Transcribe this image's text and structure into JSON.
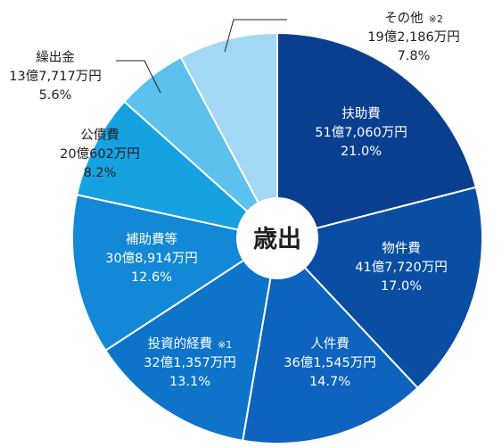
{
  "chart_data": {
    "type": "pie",
    "variant": "donut",
    "center_label": "歳出",
    "start": "12 o'clock",
    "direction": "clockwise",
    "slices": [
      {
        "name": "扶助費",
        "amount_label": "51億7,060万円",
        "percent": 21.0,
        "percent_label": "21.0%",
        "color": "#0a3f8f",
        "note": ""
      },
      {
        "name": "物件費",
        "amount_label": "41億7,720万円",
        "percent": 17.0,
        "percent_label": "17.0%",
        "color": "#0a4ea3",
        "note": ""
      },
      {
        "name": "人件費",
        "amount_label": "36億1,545万円",
        "percent": 14.7,
        "percent_label": "14.7%",
        "color": "#0d63bd",
        "note": ""
      },
      {
        "name": "投資的経費",
        "amount_label": "32億1,357万円",
        "percent": 13.1,
        "percent_label": "13.1%",
        "color": "#0e74c9",
        "note": "※1"
      },
      {
        "name": "補助費等",
        "amount_label": "30億8,914万円",
        "percent": 12.6,
        "percent_label": "12.6%",
        "color": "#1388d6",
        "note": ""
      },
      {
        "name": "公債費",
        "amount_label": "20億602万円",
        "percent": 8.2,
        "percent_label": "8.2%",
        "color": "#16a2e1",
        "note": ""
      },
      {
        "name": "繰出金",
        "amount_label": "13億7,717万円",
        "percent": 5.6,
        "percent_label": "5.6%",
        "color": "#5cc1ec",
        "note": ""
      },
      {
        "name": "その他",
        "amount_label": "19億2,186万円",
        "percent": 7.8,
        "percent_label": "7.8%",
        "color": "#a2d8f3",
        "note": "※2"
      }
    ]
  }
}
